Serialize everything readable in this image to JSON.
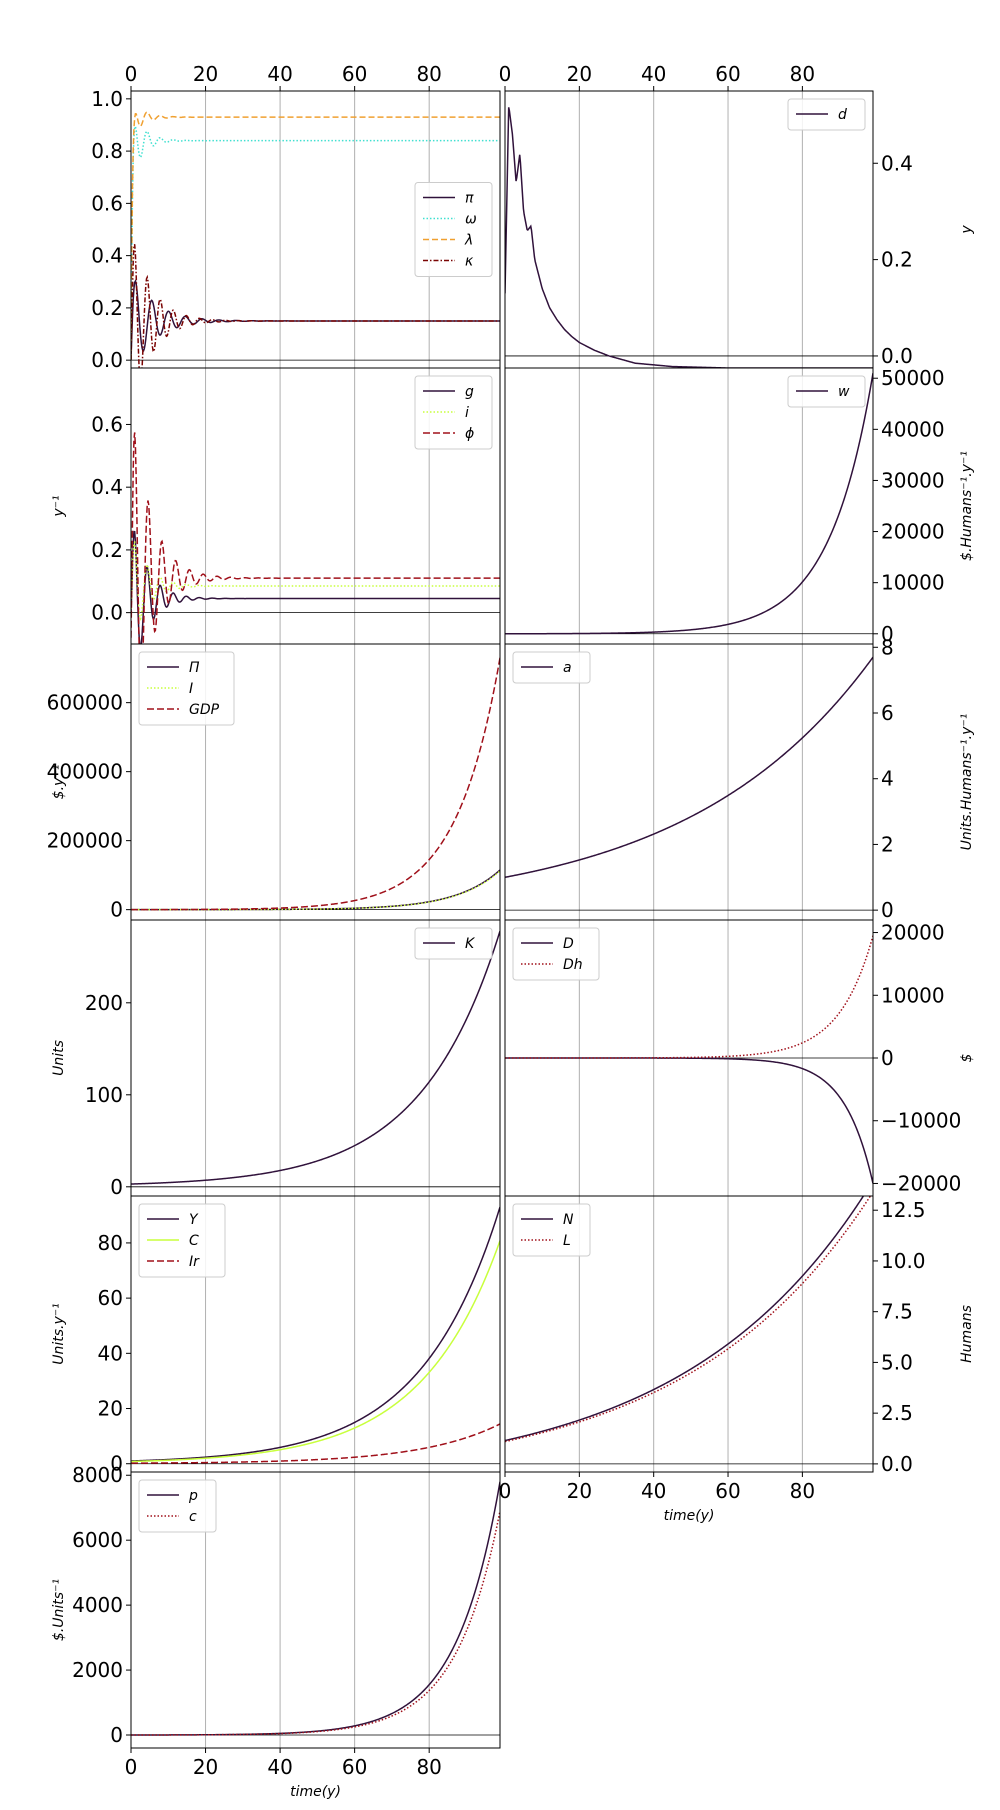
{
  "figure": {
    "xlabel": "time(y)"
  },
  "chart_data": [
    {
      "type": "line",
      "col": 0,
      "row": 0,
      "xaxis_top": true,
      "yside": "left",
      "ylabel": "",
      "xlim": [
        0,
        99
      ],
      "ylim": [
        -0.03,
        1.03
      ],
      "yticks": [
        0.0,
        0.2,
        0.4,
        0.6,
        0.8,
        1.0
      ],
      "ytick_labels": [
        "0.0",
        "0.2",
        "0.4",
        "0.6",
        "0.8",
        "1.0"
      ],
      "xticks": [
        0,
        20,
        40,
        60,
        80
      ],
      "legend": "center-right",
      "series": [
        {
          "name": "π",
          "color": "#30123b",
          "dash": "",
          "kind": "osc",
          "final": 0.15,
          "start": 0.0,
          "amp": 0.2,
          "tau": 6,
          "period": 4.5
        },
        {
          "name": "ω",
          "color": "#40e0d0",
          "dash": "1.5,2",
          "kind": "osc",
          "final": 0.84,
          "start": 0.0,
          "amp": 0.15,
          "tau": 3,
          "period": 3.5
        },
        {
          "name": "λ",
          "color": "#f0a030",
          "dash": "6,3",
          "kind": "osc",
          "final": 0.93,
          "start": 0.0,
          "amp": 0.08,
          "tau": 3,
          "period": 3.5
        },
        {
          "name": "κ",
          "color": "#7a0403",
          "dash": "5,2,1.5,2",
          "kind": "osc",
          "final": 0.15,
          "start": 0.0,
          "amp": 0.4,
          "tau": 5,
          "period": 3.5
        }
      ]
    },
    {
      "type": "line",
      "col": 1,
      "row": 0,
      "xaxis_top": true,
      "yside": "right",
      "ylabel": "y",
      "xlim": [
        0,
        99
      ],
      "ylim": [
        -0.025,
        0.55
      ],
      "yticks": [
        0.0,
        0.2,
        0.4
      ],
      "ytick_labels": [
        "0.0",
        "0.2",
        "0.4"
      ],
      "xticks": [
        0,
        20,
        40,
        60,
        80
      ],
      "legend": "top-right",
      "series": [
        {
          "name": "d",
          "color": "#30123b",
          "dash": "",
          "kind": "points",
          "x": [
            0,
            1,
            2,
            3,
            4,
            5,
            6,
            7,
            8,
            9,
            10,
            12,
            14,
            16,
            18,
            20,
            24,
            28,
            35,
            45,
            60,
            80,
            99
          ],
          "y": [
            0.13,
            0.52,
            0.46,
            0.36,
            0.42,
            0.3,
            0.26,
            0.27,
            0.2,
            0.17,
            0.14,
            0.1,
            0.075,
            0.055,
            0.04,
            0.028,
            0.012,
            0.0,
            -0.015,
            -0.022,
            -0.025,
            -0.025,
            -0.025
          ]
        }
      ]
    },
    {
      "type": "line",
      "col": 0,
      "row": 1,
      "xaxis_top": false,
      "yside": "left",
      "ylabel": "y⁻¹",
      "xlim": [
        0,
        99
      ],
      "ylim": [
        -0.1,
        0.78
      ],
      "yticks": [
        0.0,
        0.2,
        0.4,
        0.6
      ],
      "ytick_labels": [
        "0.0",
        "0.2",
        "0.4",
        "0.6"
      ],
      "xticks": [
        0,
        20,
        40,
        60,
        80
      ],
      "legend": "top-right",
      "series": [
        {
          "name": "g",
          "color": "#30123b",
          "dash": "",
          "kind": "osc",
          "final": 0.045,
          "start": 0.0,
          "amp": 0.3,
          "tau": 4,
          "period": 3.5
        },
        {
          "name": "i",
          "color": "#c8ff3c",
          "dash": "1.5,2",
          "kind": "osc",
          "final": 0.085,
          "start": 0.0,
          "amp": 0.2,
          "tau": 4,
          "period": 3.5
        },
        {
          "name": "ϕ",
          "color": "#a0101a",
          "dash": "7,3",
          "kind": "osc",
          "final": 0.11,
          "start": -0.08,
          "amp": 0.62,
          "tau": 5,
          "period": 3.7
        }
      ]
    },
    {
      "type": "line",
      "col": 1,
      "row": 1,
      "xaxis_top": false,
      "yside": "right",
      "ylabel": "$.Humans⁻¹.y⁻¹",
      "xlim": [
        0,
        99
      ],
      "ylim": [
        -2000,
        52000
      ],
      "yticks": [
        0,
        10000,
        20000,
        30000,
        40000,
        50000
      ],
      "ytick_labels": [
        "0",
        "10000",
        "20000",
        "30000",
        "40000",
        "50000"
      ],
      "xticks": [
        0,
        20,
        40,
        60,
        80
      ],
      "legend": "top-right",
      "series": [
        {
          "name": "w",
          "color": "#30123b",
          "dash": "",
          "kind": "exp",
          "a": 0,
          "b": 51000,
          "k": 0.085
        }
      ]
    },
    {
      "type": "line",
      "col": 0,
      "row": 2,
      "xaxis_top": false,
      "yside": "left",
      "ylabel": "$.y⁻¹",
      "xlim": [
        0,
        99
      ],
      "ylim": [
        -30000,
        770000
      ],
      "yticks": [
        0,
        200000,
        400000,
        600000
      ],
      "ytick_labels": [
        "0",
        "200000",
        "400000",
        "600000"
      ],
      "xticks": [
        0,
        20,
        40,
        60,
        80
      ],
      "legend": "top-left",
      "series": [
        {
          "name": "Π",
          "color": "#30123b",
          "dash": "",
          "kind": "exp",
          "a": 0,
          "b": 115000,
          "k": 0.085
        },
        {
          "name": "I",
          "color": "#c8ff3c",
          "dash": "1.5,2",
          "kind": "exp",
          "a": 0,
          "b": 112000,
          "k": 0.085
        },
        {
          "name": "GDP",
          "color": "#a0101a",
          "dash": "7,3",
          "kind": "exp",
          "a": 0,
          "b": 730000,
          "k": 0.085
        }
      ]
    },
    {
      "type": "line",
      "col": 1,
      "row": 2,
      "xaxis_top": false,
      "yside": "right",
      "ylabel": "Units.Humans⁻¹.y⁻¹",
      "xlim": [
        0,
        99
      ],
      "ylim": [
        -0.3,
        8.1
      ],
      "yticks": [
        0,
        2,
        4,
        6,
        8
      ],
      "ytick_labels": [
        "0",
        "2",
        "4",
        "6",
        "8"
      ],
      "xticks": [
        0,
        20,
        40,
        60,
        80
      ],
      "legend": "top-left",
      "series": [
        {
          "name": "a",
          "color": "#30123b",
          "dash": "",
          "kind": "exp",
          "a": 1.0,
          "b": 6.7,
          "k": 0.02
        }
      ]
    },
    {
      "type": "line",
      "col": 0,
      "row": 3,
      "xaxis_top": false,
      "yside": "left",
      "ylabel": "Units",
      "xlim": [
        0,
        99
      ],
      "ylim": [
        -10,
        290
      ],
      "yticks": [
        0,
        100,
        200
      ],
      "ytick_labels": [
        "0",
        "100",
        "200"
      ],
      "xticks": [
        0,
        20,
        40,
        60,
        80
      ],
      "legend": "top-right",
      "series": [
        {
          "name": "K",
          "color": "#30123b",
          "dash": "",
          "kind": "exp",
          "a": 3,
          "b": 275,
          "k": 0.047
        }
      ]
    },
    {
      "type": "line",
      "col": 1,
      "row": 3,
      "xaxis_top": false,
      "yside": "right",
      "ylabel": "$",
      "xlim": [
        0,
        99
      ],
      "ylim": [
        -22000,
        22000
      ],
      "yticks": [
        -20000,
        -10000,
        0,
        10000,
        20000
      ],
      "ytick_labels": [
        "−20000",
        "−10000",
        "0",
        "10000",
        "20000"
      ],
      "xticks": [
        0,
        20,
        40,
        60,
        80
      ],
      "legend": "top-left",
      "series": [
        {
          "name": "D",
          "color": "#30123b",
          "dash": "",
          "kind": "exp",
          "a": 0,
          "b": -20000,
          "k": 0.13
        },
        {
          "name": "Dh",
          "color": "#a0101a",
          "dash": "1.5,2",
          "kind": "exp",
          "a": 0,
          "b": 19500,
          "k": 0.11
        }
      ]
    },
    {
      "type": "line",
      "col": 0,
      "row": 4,
      "xaxis_top": false,
      "yside": "left",
      "ylabel": "Units.y⁻¹",
      "xlim": [
        0,
        99
      ],
      "ylim": [
        -3,
        97
      ],
      "yticks": [
        0,
        20,
        40,
        60,
        80
      ],
      "ytick_labels": [
        "0",
        "20",
        "40",
        "60",
        "80"
      ],
      "xticks": [
        0,
        20,
        40,
        60,
        80
      ],
      "legend": "top-left",
      "series": [
        {
          "name": "Y",
          "color": "#30123b",
          "dash": "",
          "kind": "exp",
          "a": 1,
          "b": 92,
          "k": 0.047
        },
        {
          "name": "C",
          "color": "#c8ff3c",
          "dash": "",
          "kind": "exp",
          "a": 0.8,
          "b": 80,
          "k": 0.047
        },
        {
          "name": "Ir",
          "color": "#a0101a",
          "dash": "7,3",
          "kind": "exp",
          "a": 0.2,
          "b": 14.2,
          "k": 0.047
        }
      ]
    },
    {
      "type": "line",
      "col": 1,
      "row": 4,
      "xaxis_top": false,
      "yside": "right",
      "ylabel": "Humans",
      "xlim": [
        0,
        99
      ],
      "ylim": [
        -0.4,
        13.2
      ],
      "yticks": [
        0.0,
        2.5,
        5.0,
        7.5,
        10.0,
        12.5
      ],
      "ytick_labels": [
        "0.0",
        "2.5",
        "5.0",
        "7.5",
        "10.0",
        "12.5"
      ],
      "xticks": [
        0,
        20,
        40,
        60,
        80
      ],
      "xtick_labels": [
        "0",
        "20",
        "40",
        "60",
        "80"
      ],
      "show_xticks": true,
      "xlabel": "time(y)",
      "legend": "top-left",
      "series": [
        {
          "name": "N",
          "color": "#30123b",
          "dash": "",
          "kind": "exp",
          "a": 1.15,
          "b": 12.8,
          "k": 0.02
        },
        {
          "name": "L",
          "color": "#a0101a",
          "dash": "1.5,2",
          "kind": "exp",
          "a": 1.1,
          "b": 12.3,
          "k": 0.02
        }
      ]
    },
    {
      "type": "line",
      "col": 0,
      "row": 5,
      "xaxis_top": false,
      "yside": "left",
      "ylabel": "$.Units⁻¹",
      "xlim": [
        0,
        99
      ],
      "ylim": [
        -400,
        8100
      ],
      "yticks": [
        0,
        2000,
        4000,
        6000,
        8000
      ],
      "ytick_labels": [
        "0",
        "2000",
        "4000",
        "6000",
        "8000"
      ],
      "xticks": [
        0,
        20,
        40,
        60,
        80
      ],
      "xtick_labels": [
        "0",
        "20",
        "40",
        "60",
        "80"
      ],
      "show_xticks": true,
      "xlabel": "time(y)",
      "legend": "top-left",
      "series": [
        {
          "name": "p",
          "color": "#30123b",
          "dash": "",
          "kind": "exp",
          "a": 0,
          "b": 7800,
          "k": 0.085
        },
        {
          "name": "c",
          "color": "#a0101a",
          "dash": "1.5,2",
          "kind": "exp",
          "a": 0,
          "b": 6900,
          "k": 0.085
        }
      ]
    }
  ],
  "top_xtick_labels": [
    "0",
    "20",
    "40",
    "60",
    "80"
  ]
}
